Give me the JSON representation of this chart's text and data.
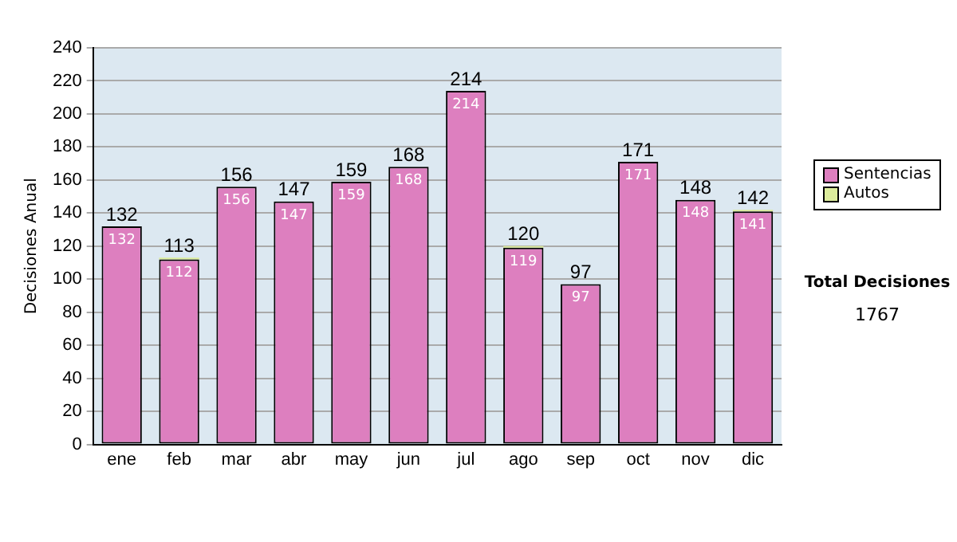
{
  "chart_data": {
    "type": "bar",
    "stacked": true,
    "ylabel": "Decisiones Anual",
    "categories": [
      "ene",
      "feb",
      "mar",
      "abr",
      "may",
      "jun",
      "jul",
      "ago",
      "sep",
      "oct",
      "nov",
      "dic"
    ],
    "series": [
      {
        "name": "Sentencias",
        "color": "#dd7fbf",
        "values": [
          132,
          112,
          156,
          147,
          159,
          168,
          214,
          119,
          97,
          171,
          148,
          141
        ],
        "value_labels": [
          "132",
          "112",
          "156",
          "147",
          "159",
          "168",
          "214",
          "119",
          "97",
          "171",
          "148",
          "141"
        ]
      },
      {
        "name": "Autos",
        "color": "#dcec9c",
        "values": [
          0,
          1,
          0,
          0,
          0,
          0,
          0,
          1,
          0,
          0,
          0,
          1
        ]
      }
    ],
    "totals": [
      "132",
      "113",
      "156",
      "147",
      "159",
      "168",
      "214",
      "120",
      "97",
      "171",
      "148",
      "142"
    ],
    "ylim": [
      0,
      240
    ],
    "yticks": [
      0,
      20,
      40,
      60,
      80,
      100,
      120,
      140,
      160,
      180,
      200,
      220,
      240
    ],
    "grid": "y",
    "legend": "right",
    "annotations": [
      "Total Decisiones",
      "1767"
    ]
  }
}
